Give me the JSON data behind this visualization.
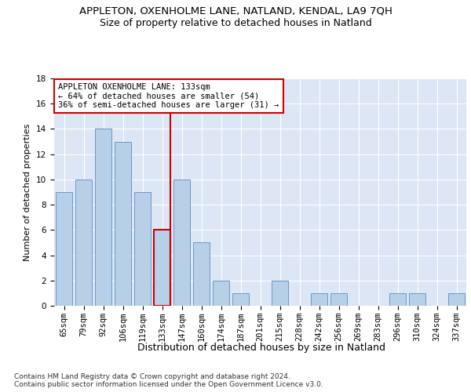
{
  "title1": "APPLETON, OXENHOLME LANE, NATLAND, KENDAL, LA9 7QH",
  "title2": "Size of property relative to detached houses in Natland",
  "xlabel": "Distribution of detached houses by size in Natland",
  "ylabel": "Number of detached properties",
  "categories": [
    "65sqm",
    "79sqm",
    "92sqm",
    "106sqm",
    "119sqm",
    "133sqm",
    "147sqm",
    "160sqm",
    "174sqm",
    "187sqm",
    "201sqm",
    "215sqm",
    "228sqm",
    "242sqm",
    "256sqm",
    "269sqm",
    "283sqm",
    "296sqm",
    "310sqm",
    "324sqm",
    "337sqm"
  ],
  "values": [
    9,
    10,
    14,
    13,
    9,
    6,
    10,
    5,
    2,
    1,
    0,
    2,
    0,
    1,
    1,
    0,
    0,
    1,
    1,
    0,
    1
  ],
  "bar_color": "#b8cfe8",
  "bar_edge_color": "#6699cc",
  "highlight_index": 5,
  "highlight_line_color": "#cc0000",
  "annotation_text": "APPLETON OXENHOLME LANE: 133sqm\n← 64% of detached houses are smaller (54)\n36% of semi-detached houses are larger (31) →",
  "annotation_box_color": "#ffffff",
  "annotation_box_edge_color": "#cc0000",
  "ylim": [
    0,
    18
  ],
  "yticks": [
    0,
    2,
    4,
    6,
    8,
    10,
    12,
    14,
    16,
    18
  ],
  "background_color": "#dce6f5",
  "footer_text": "Contains HM Land Registry data © Crown copyright and database right 2024.\nContains public sector information licensed under the Open Government Licence v3.0.",
  "title1_fontsize": 9.5,
  "title2_fontsize": 9,
  "xlabel_fontsize": 9,
  "ylabel_fontsize": 8,
  "tick_fontsize": 7.5,
  "annotation_fontsize": 7.5,
  "footer_fontsize": 6.5
}
